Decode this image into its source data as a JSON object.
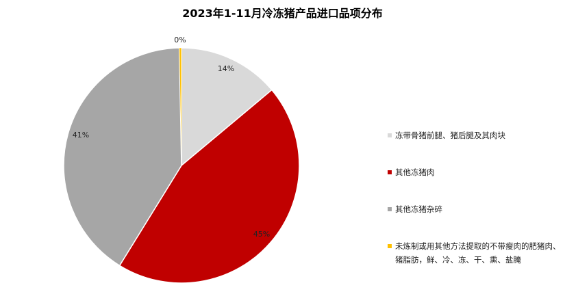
{
  "chart_data": {
    "type": "pie",
    "title": "2023年1-11月冷冻猪产品进口品项分布",
    "legend_position": "right",
    "slices": [
      {
        "name": "冻带骨猪前腿、猪后腿及其肉块",
        "value": 13.9,
        "label": "14%",
        "color": "#d9d9d9"
      },
      {
        "name": "其他冻猪肉",
        "value": 44.9,
        "label": "45%",
        "color": "#c00000"
      },
      {
        "name": "其他冻猪杂碎",
        "value": 40.9,
        "label": "41%",
        "color": "#a6a6a6"
      },
      {
        "name": "未炼制或用其他方法提取的不带瘦肉的肥猪肉、猪脂肪，鲜、冷、冻、干、熏、盐腌",
        "value": 0.3,
        "label": "0%",
        "color": "#ffc000"
      }
    ]
  }
}
